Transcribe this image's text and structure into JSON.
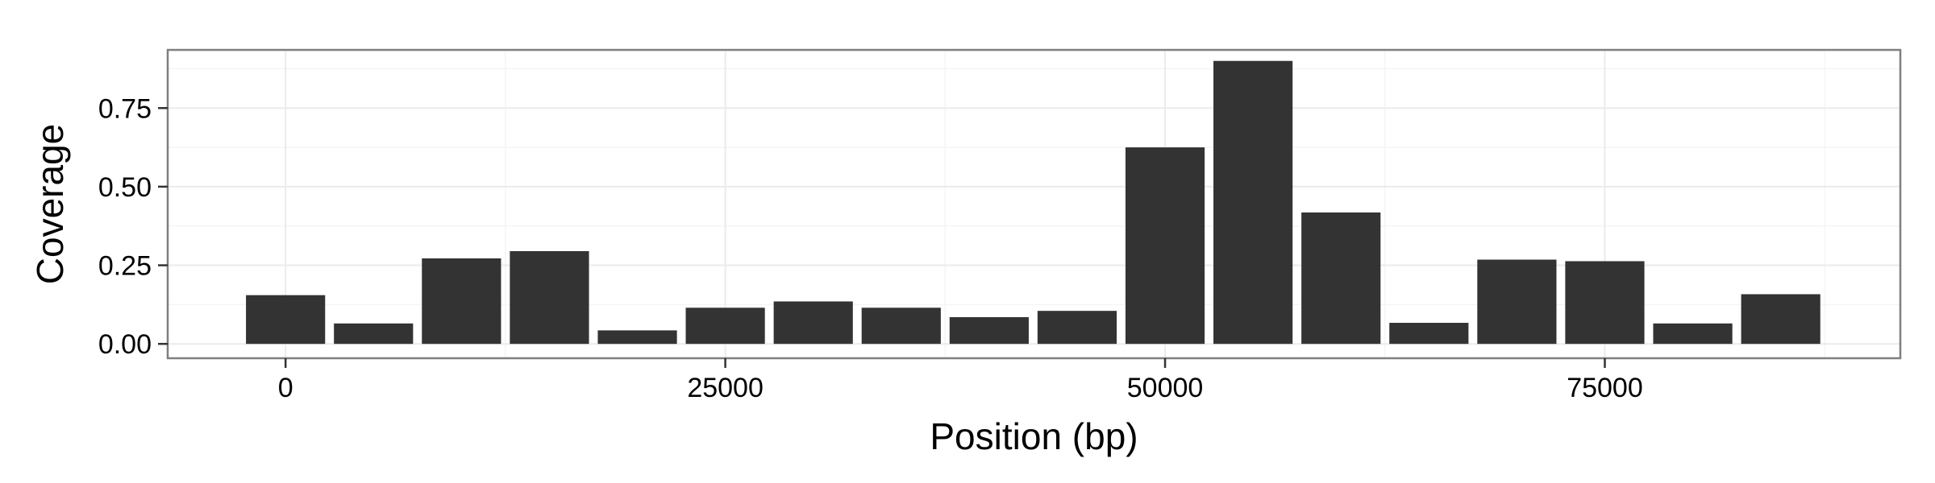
{
  "chart_data": {
    "type": "bar",
    "xlabel": "Position (bp)",
    "ylabel": "Coverage",
    "xlim": [
      -6700,
      91800
    ],
    "ylim": [
      -0.0456,
      0.935
    ],
    "x_ticks": [
      0,
      25000,
      50000,
      75000
    ],
    "x_tick_labels": [
      "0",
      "25000",
      "50000",
      "75000"
    ],
    "y_ticks": [
      0,
      0.25,
      0.5,
      0.75
    ],
    "y_tick_labels": [
      "0.00",
      "0.25",
      "0.50",
      "0.75"
    ],
    "bin_width": 5000,
    "x": [
      0,
      5000,
      10000,
      15000,
      20000,
      25000,
      30000,
      35000,
      40000,
      45000,
      50000,
      55000,
      60000,
      65000,
      70000,
      75000,
      80000,
      85000
    ],
    "values": [
      0.155,
      0.065,
      0.272,
      0.295,
      0.043,
      0.115,
      0.135,
      0.115,
      0.085,
      0.105,
      0.625,
      0.9,
      0.418,
      0.067,
      0.268,
      0.263,
      0.065,
      0.158
    ],
    "grid": true,
    "legend": "none",
    "colors": {
      "bar": "#333333",
      "panel_border": "#7f7f7f",
      "grid_major": "#ebebeb",
      "grid_minor": "#f5f5f5",
      "tick": "#333333"
    }
  }
}
